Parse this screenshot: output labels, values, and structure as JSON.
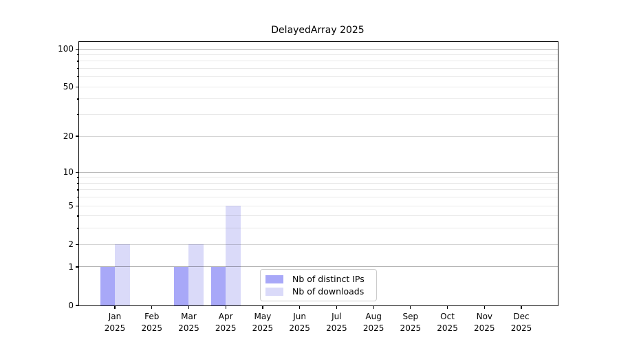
{
  "title": "DelayedArray 2025",
  "chart_data": {
    "type": "bar",
    "title": "DelayedArray 2025",
    "categories": [
      {
        "month": "Jan",
        "year": "2025"
      },
      {
        "month": "Feb",
        "year": "2025"
      },
      {
        "month": "Mar",
        "year": "2025"
      },
      {
        "month": "Apr",
        "year": "2025"
      },
      {
        "month": "May",
        "year": "2025"
      },
      {
        "month": "Jun",
        "year": "2025"
      },
      {
        "month": "Jul",
        "year": "2025"
      },
      {
        "month": "Aug",
        "year": "2025"
      },
      {
        "month": "Sep",
        "year": "2025"
      },
      {
        "month": "Oct",
        "year": "2025"
      },
      {
        "month": "Nov",
        "year": "2025"
      },
      {
        "month": "Dec",
        "year": "2025"
      }
    ],
    "series": [
      {
        "name": "Nb of distinct IPs",
        "color": "#a8a8f8",
        "values": [
          1,
          0,
          1,
          1,
          0,
          0,
          0,
          0,
          0,
          0,
          0,
          0
        ]
      },
      {
        "name": "Nb of downloads",
        "color": "#dadaf9",
        "values": [
          2,
          0,
          2,
          5,
          0,
          0,
          0,
          0,
          0,
          0,
          0,
          0
        ]
      }
    ],
    "xlabel": "",
    "ylabel": "",
    "y_scale": "log1p",
    "ylim": [
      0,
      113.5
    ],
    "y_tick_labels": [
      0,
      1,
      2,
      5,
      10,
      20,
      50,
      100
    ],
    "y_major_gridlines": [
      1,
      10,
      100
    ],
    "y_minor_gridlines": [
      2,
      3,
      4,
      6,
      7,
      8,
      9,
      20,
      30,
      40,
      60,
      70,
      80,
      90
    ],
    "y_labeled_minor_ticks": [
      2,
      5,
      20,
      50
    ],
    "grid": "both",
    "legend_position": "inside-lower-center"
  },
  "legend": {
    "items": [
      {
        "label": "Nb of distinct IPs",
        "swatch_color": "#a8a8f8"
      },
      {
        "label": "Nb of downloads",
        "swatch_color": "#dadaf9"
      }
    ]
  }
}
